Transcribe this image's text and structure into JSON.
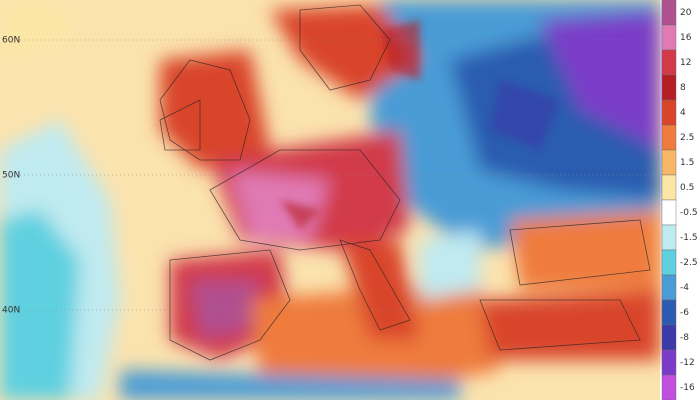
{
  "map": {
    "lat_labels": [
      "60N",
      "50N",
      "40N"
    ],
    "legend": {
      "labels": [
        "20",
        "16",
        "12",
        "8",
        "4",
        "2.5",
        "1.5",
        "0.5",
        "-0.5",
        "-1.5",
        "-2.5",
        "-4",
        "-6",
        "-8",
        "-12",
        "-16"
      ],
      "colors": [
        "#b0508f",
        "#e07ab4",
        "#d23a4a",
        "#b51e24",
        "#d9452a",
        "#ef7b3c",
        "#f7b766",
        "#fbe6a6",
        "#ffffff",
        "#bfeaf0",
        "#5fd0e0",
        "#4a9bd6",
        "#2a5bb0",
        "#3a3aa8",
        "#7a3cc8",
        "#c04fe0"
      ]
    }
  }
}
